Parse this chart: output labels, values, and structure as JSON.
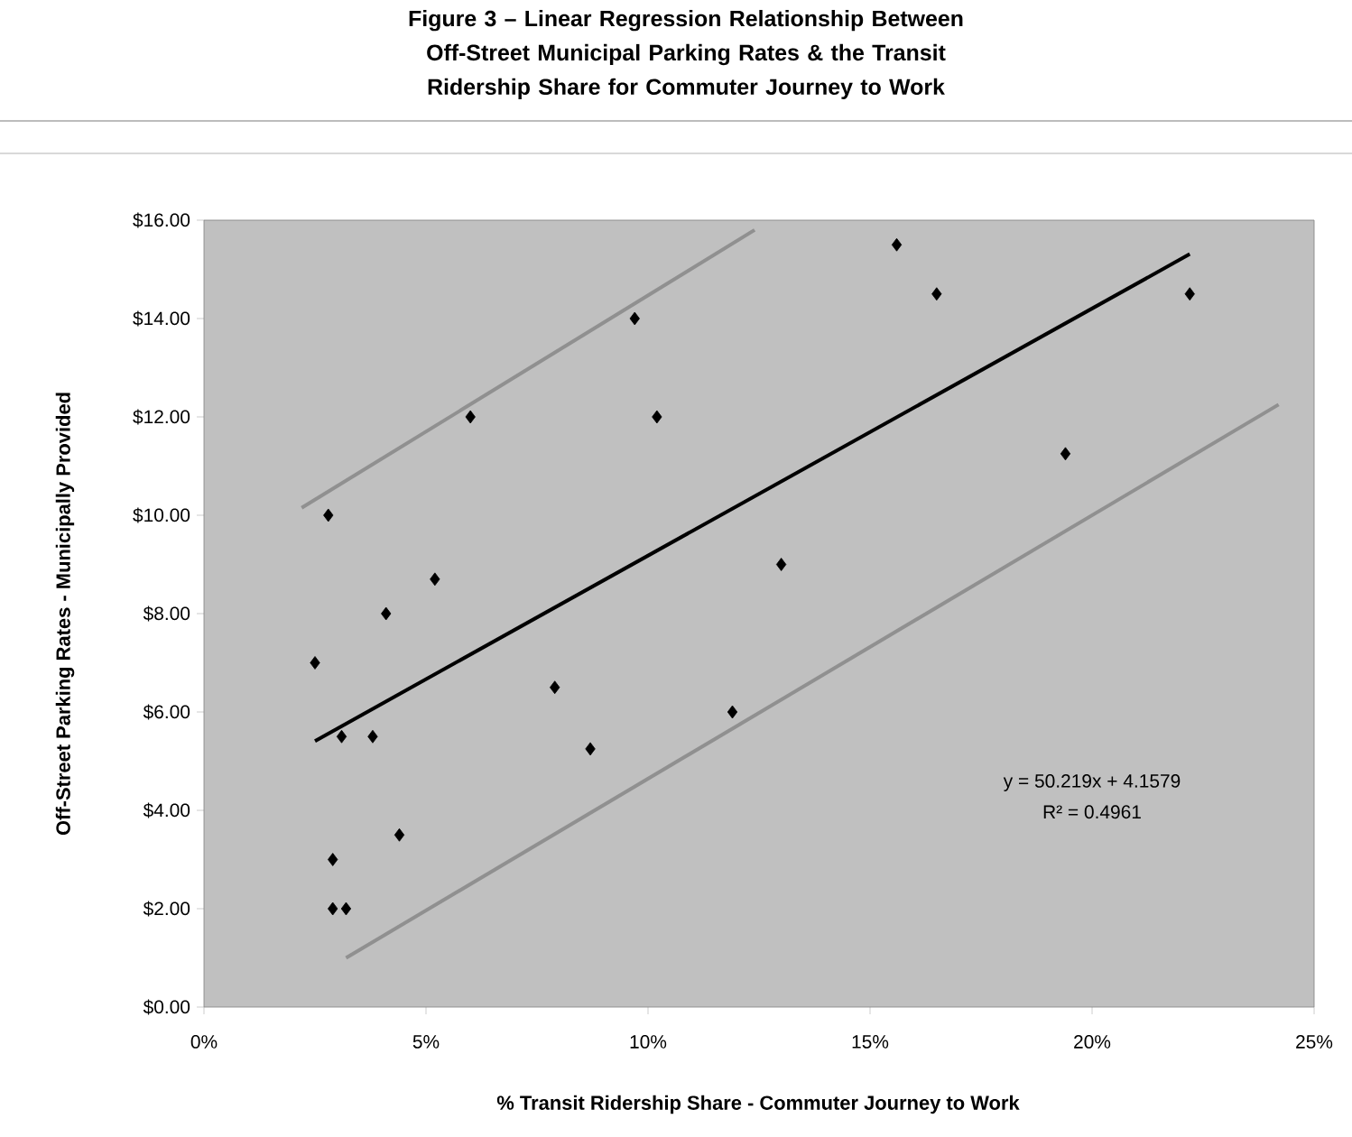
{
  "chart_data": {
    "type": "scatter",
    "title": "Figure 3 – Linear Regression Relationship Between Off-Street Municipal Parking Rates & the Transit Ridership Share for Commuter Journey to Work",
    "xlabel": "% Transit Ridership Share - Commuter Journey to Work",
    "ylabel": "Off-Street Parking Rates - Municipally Provided",
    "xlim": [
      0,
      25
    ],
    "ylim": [
      0,
      16
    ],
    "xticks": [
      {
        "value": 0,
        "label": "0%"
      },
      {
        "value": 5,
        "label": "5%"
      },
      {
        "value": 10,
        "label": "10%"
      },
      {
        "value": 15,
        "label": "15%"
      },
      {
        "value": 20,
        "label": "20%"
      },
      {
        "value": 25,
        "label": "25%"
      }
    ],
    "yticks": [
      {
        "value": 0,
        "label": "$0.00"
      },
      {
        "value": 2,
        "label": "$2.00"
      },
      {
        "value": 4,
        "label": "$4.00"
      },
      {
        "value": 6,
        "label": "$6.00"
      },
      {
        "value": 8,
        "label": "$8.00"
      },
      {
        "value": 10,
        "label": "$10.00"
      },
      {
        "value": 12,
        "label": "$12.00"
      },
      {
        "value": 14,
        "label": "$14.00"
      },
      {
        "value": 16,
        "label": "$16.00"
      }
    ],
    "grid": false,
    "series": [
      {
        "marker": "diamond",
        "color": "#000000",
        "x": [
          2.5,
          2.8,
          2.9,
          2.9,
          3.2,
          3.1,
          3.8,
          4.1,
          4.4,
          5.2,
          6.0,
          7.9,
          8.7,
          9.7,
          10.2,
          11.9,
          13.0,
          15.6,
          16.5,
          19.4,
          22.2
        ],
        "values": [
          7,
          10,
          3,
          2,
          2,
          5.5,
          5.5,
          8,
          3.5,
          8.7,
          12,
          6.5,
          5.25,
          14,
          12,
          6,
          9,
          15.5,
          14.5,
          11.25,
          14.5
        ]
      },
      {
        "type": "line",
        "marker": "none",
        "color": "#000000",
        "x": [
          2.5,
          22.2
        ],
        "values": [
          5.41,
          15.31
        ]
      },
      {
        "type": "line",
        "marker": "none",
        "color": "#909090",
        "x": [
          2.2,
          12.4
        ],
        "values": [
          10.15,
          15.8
        ]
      },
      {
        "type": "line",
        "marker": "none",
        "color": "#909090",
        "x": [
          3.2,
          24.2
        ],
        "values": [
          1.0,
          12.25
        ]
      }
    ],
    "annotations": [
      "y = 50.219x + 4.1579",
      "R² = 0.4961"
    ]
  }
}
